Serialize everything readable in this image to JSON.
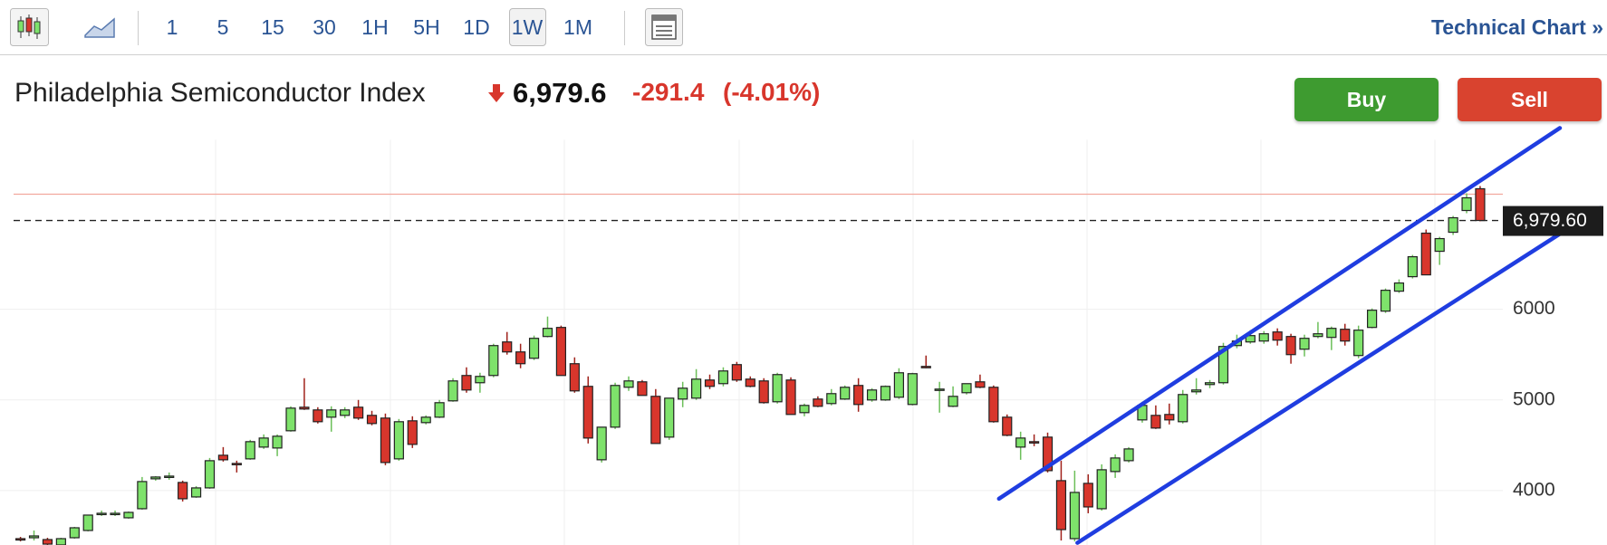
{
  "toolbar": {
    "intervals": [
      "1",
      "5",
      "15",
      "30",
      "1H",
      "5H",
      "1D",
      "1W",
      "1M"
    ],
    "link": "Technical Chart »"
  },
  "quote": {
    "name": "Philadelphia Semiconductor Index",
    "price": "6,979.6",
    "change": "-291.4",
    "change_percent": "(-4.01%)"
  },
  "buttons": {
    "buy": "Buy",
    "sell": "Sell"
  },
  "chart_data": {
    "type": "candlestick",
    "open": [
      3470,
      3480,
      3460,
      3400,
      3480,
      3560,
      3740,
      3740,
      3700,
      3800,
      4130,
      4150,
      4090,
      3930,
      4030,
      4390,
      4300,
      4350,
      4480,
      4470,
      4660,
      4920,
      4890,
      4810,
      4830,
      4920,
      4830,
      4800,
      4350,
      4770,
      4750,
      4810,
      4990,
      5270,
      5190,
      5270,
      5640,
      5530,
      5460,
      5700,
      5800,
      5400,
      5150,
      4340,
      4700,
      5140,
      5200,
      5040,
      4590,
      5010,
      5020,
      5220,
      5180,
      5390,
      5230,
      5210,
      4980,
      5220,
      4860,
      5010,
      4960,
      5010,
      5160,
      5000,
      5000,
      5030,
      4950,
      5370,
      5110,
      4930,
      5080,
      5200,
      5140,
      4810,
      4480,
      4540,
      4590,
      4110,
      3470,
      4080,
      3800,
      4210,
      4330,
      4780,
      4830,
      4840,
      4760,
      5090,
      5170,
      5190,
      5600,
      5640,
      5650,
      5750,
      5700,
      5560,
      5700,
      5690,
      5780,
      5490,
      5800,
      5980,
      6200,
      6360,
      6840,
      6640,
      6850,
      7090,
      7330
    ],
    "high": [
      3490,
      3560,
      3480,
      3480,
      3600,
      3730,
      3780,
      3780,
      3770,
      4150,
      4160,
      4200,
      4110,
      4050,
      4360,
      4480,
      4330,
      4560,
      4620,
      4620,
      4930,
      5240,
      4920,
      4930,
      4920,
      5000,
      4880,
      4850,
      4790,
      4820,
      4830,
      5000,
      5240,
      5360,
      5300,
      5620,
      5750,
      5620,
      5710,
      5920,
      5820,
      5470,
      5260,
      4700,
      5190,
      5260,
      5220,
      5120,
      5000,
      5200,
      5340,
      5280,
      5360,
      5420,
      5260,
      5240,
      5300,
      5250,
      4960,
      5040,
      5120,
      5160,
      5240,
      5130,
      5160,
      5350,
      5300,
      5490,
      5200,
      5150,
      5180,
      5280,
      5160,
      4840,
      4650,
      4620,
      4640,
      4330,
      4220,
      4180,
      4290,
      4400,
      4480,
      4980,
      4940,
      4960,
      5110,
      5240,
      5220,
      5630,
      5720,
      5770,
      5760,
      5790,
      5730,
      5720,
      5860,
      5810,
      5840,
      5820,
      6010,
      6230,
      6330,
      6600,
      6880,
      6800,
      7030,
      7280,
      7360
    ],
    "low": [
      3440,
      3450,
      3400,
      3390,
      3470,
      3550,
      3720,
      3720,
      3690,
      3790,
      4110,
      4120,
      3880,
      3920,
      4020,
      4320,
      4200,
      4340,
      4460,
      4380,
      4650,
      4890,
      4740,
      4650,
      4800,
      4780,
      4720,
      4280,
      4330,
      4470,
      4730,
      4800,
      4980,
      5080,
      5080,
      5250,
      5500,
      5350,
      5440,
      5690,
      5270,
      5080,
      4520,
      4310,
      4680,
      5100,
      5050,
      4520,
      4560,
      4920,
      5000,
      5120,
      5150,
      5200,
      5140,
      4960,
      4960,
      4840,
      4820,
      4920,
      4940,
      5000,
      4870,
      4980,
      4990,
      5010,
      4940,
      5350,
      4860,
      4920,
      5060,
      5130,
      4750,
      4600,
      4340,
      4490,
      4200,
      3450,
      3440,
      3750,
      3780,
      4140,
      4310,
      4750,
      4680,
      4730,
      4740,
      5060,
      5130,
      5170,
      5570,
      5620,
      5620,
      5600,
      5400,
      5480,
      5680,
      5550,
      5600,
      5460,
      5790,
      5960,
      6180,
      6340,
      6380,
      6490,
      6820,
      7060,
      6970
    ],
    "close": [
      3460,
      3500,
      3410,
      3470,
      3590,
      3730,
      3750,
      3750,
      3760,
      4100,
      4150,
      4160,
      3910,
      4030,
      4330,
      4340,
      4290,
      4540,
      4580,
      4600,
      4910,
      4900,
      4760,
      4890,
      4890,
      4800,
      4740,
      4310,
      4760,
      4510,
      4810,
      4970,
      5210,
      5110,
      5260,
      5600,
      5530,
      5400,
      5680,
      5790,
      5270,
      5100,
      4580,
      4700,
      5160,
      5210,
      5050,
      4520,
      5020,
      5130,
      5230,
      5150,
      5320,
      5220,
      5150,
      4970,
      5280,
      4840,
      4940,
      4930,
      5070,
      5140,
      4950,
      5110,
      5150,
      5300,
      5290,
      5360,
      5120,
      5040,
      5180,
      5140,
      4760,
      4610,
      4580,
      4530,
      4220,
      3570,
      3980,
      3820,
      4230,
      4360,
      4460,
      4940,
      4690,
      4780,
      5060,
      5110,
      5190,
      5590,
      5650,
      5710,
      5730,
      5660,
      5500,
      5680,
      5730,
      5790,
      5650,
      5770,
      5990,
      6210,
      6290,
      6580,
      6380,
      6780,
      7010,
      7230,
      6980
    ],
    "up_color": "#7ee26b",
    "down_color": "#d8362c",
    "ylim": [
      3400,
      7950
    ],
    "yticks": [
      4000,
      5000,
      6000
    ],
    "last_price": {
      "value": 6979.6,
      "label": "6,979.60"
    },
    "high_line": 7270,
    "trendlines": [
      {
        "x": [
          72.4,
          113.9
        ],
        "y": [
          3910,
          8000
        ],
        "color": "#1f3de0"
      },
      {
        "x": [
          78.2,
          116.9
        ],
        "y": [
          3424,
          7119
        ],
        "color": "#1f3de0"
      }
    ]
  }
}
